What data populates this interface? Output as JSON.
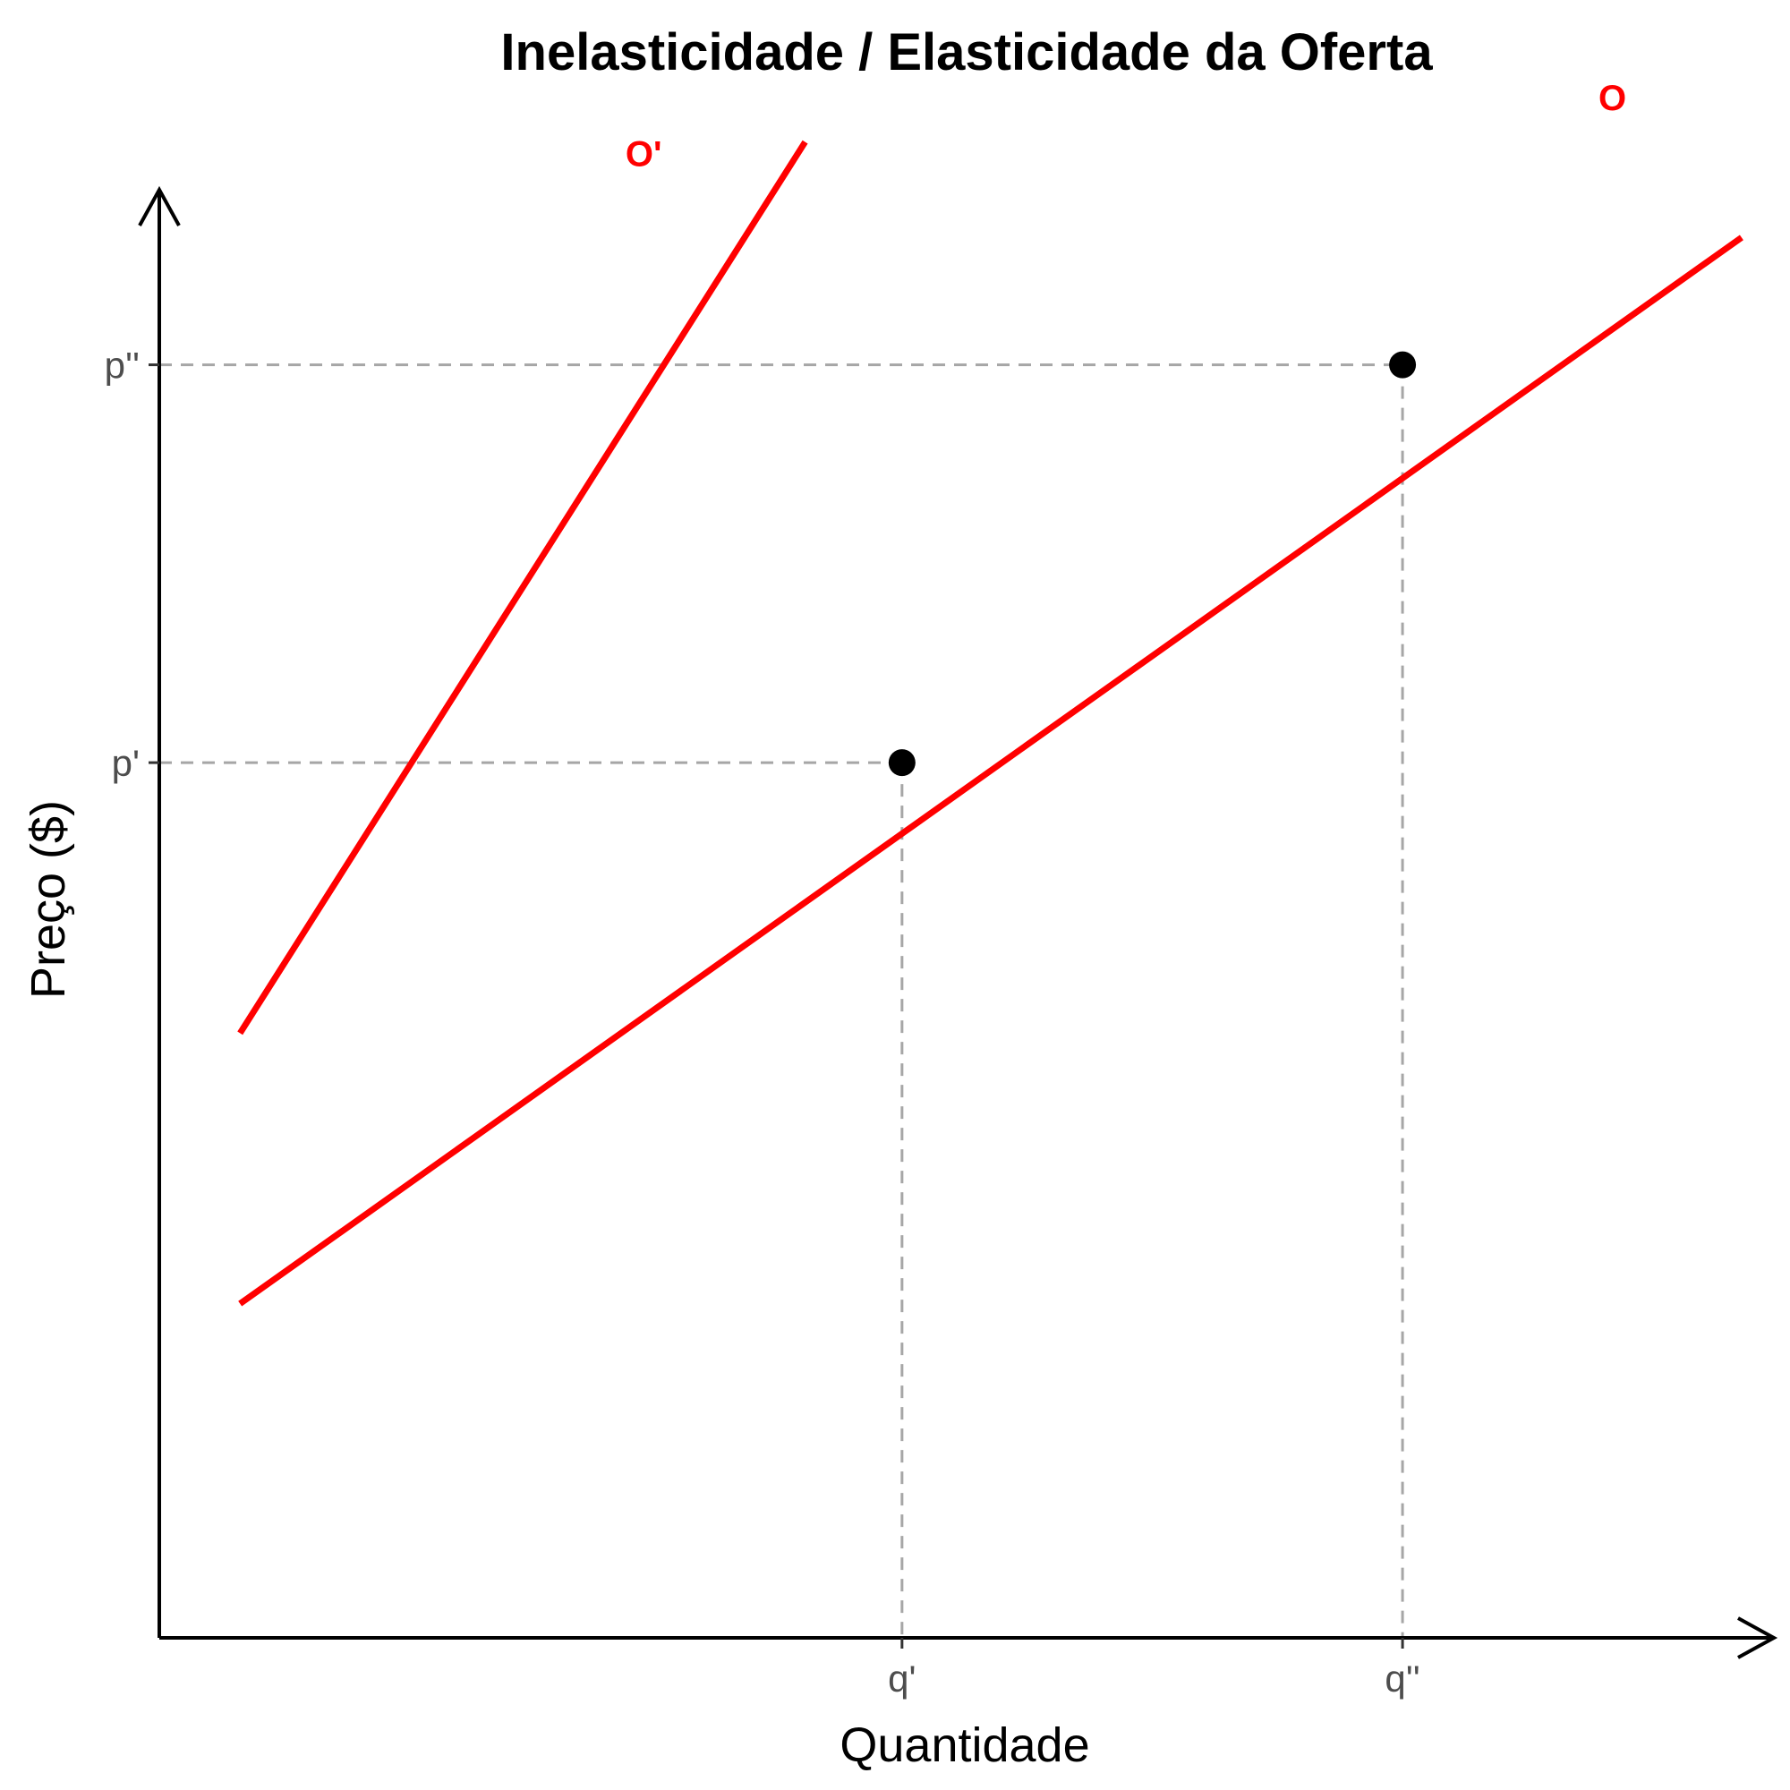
{
  "chart_data": {
    "type": "line",
    "title": "Inelasticidade / Elasticidade da Oferta",
    "xlabel": "Quantidade",
    "ylabel": "Preço ($)",
    "xlim": [
      0,
      10
    ],
    "ylim": [
      0,
      10
    ],
    "grid": false,
    "curve_color": "#ff0000",
    "series": [
      {
        "name": "O",
        "x": [
          0.5,
          9.8
        ],
        "y": [
          2.1,
          8.8
        ]
      },
      {
        "name": "O'",
        "x": [
          0.5,
          4.0
        ],
        "y": [
          3.8,
          9.4
        ]
      }
    ],
    "points": [
      {
        "x": 4.6,
        "y": 5.5
      },
      {
        "x": 7.7,
        "y": 8.0
      }
    ],
    "x_ticks": [
      {
        "value": 4.6,
        "label": "q'"
      },
      {
        "value": 7.7,
        "label": "q''"
      }
    ],
    "y_ticks": [
      {
        "value": 5.5,
        "label": "p'"
      },
      {
        "value": 8.0,
        "label": "p''"
      }
    ],
    "curve_labels": [
      {
        "text": "O",
        "x": 9.0,
        "y": 9.6
      },
      {
        "text": "O'",
        "x": 3.0,
        "y": 9.25
      }
    ]
  }
}
